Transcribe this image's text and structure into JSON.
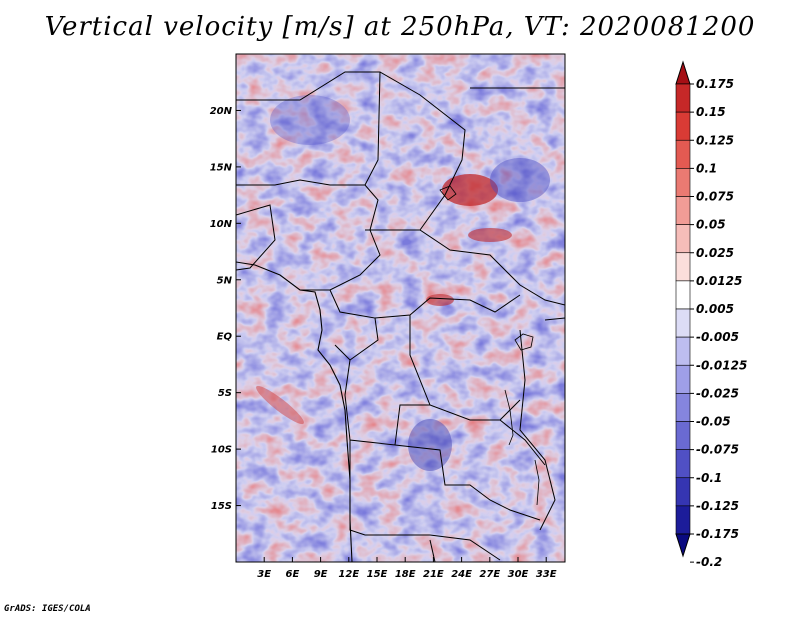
{
  "title": "Vertical velocity [m/s] at 250hPa, VT: 2020081200",
  "footer": "GrADS: IGES/COLA",
  "map": {
    "lat_ticks": [
      "20N",
      "15N",
      "10N",
      "5N",
      "EQ",
      "5S",
      "10S",
      "15S"
    ],
    "lat_values": [
      20,
      15,
      10,
      5,
      0,
      -5,
      -10,
      -15
    ],
    "lon_ticks": [
      "3E",
      "6E",
      "9E",
      "12E",
      "15E",
      "18E",
      "21E",
      "24E",
      "27E",
      "30E",
      "33E"
    ],
    "lon_values": [
      3,
      6,
      9,
      12,
      15,
      18,
      21,
      24,
      27,
      30,
      33
    ],
    "lon_range": [
      0,
      35
    ],
    "lat_range": [
      -20,
      25
    ]
  },
  "colorbar": {
    "labels": [
      "0.175",
      "0.15",
      "0.125",
      "0.1",
      "0.075",
      "0.05",
      "0.025",
      "0.0125",
      "0.005",
      "-0.005",
      "-0.0125",
      "-0.025",
      "-0.05",
      "-0.075",
      "-0.1",
      "-0.125",
      "-0.175",
      "-0.2"
    ],
    "colors": [
      "#a50f15",
      "#c62828",
      "#d93b35",
      "#e35a52",
      "#ea7a72",
      "#f19c96",
      "#f6bdb9",
      "#fbdedb",
      "#ffffff",
      "#dcdcf6",
      "#bdbdf0",
      "#9f9fe8",
      "#8585de",
      "#6a6ad2",
      "#5050c4",
      "#3535b2",
      "#1c1c9a",
      "#0a0a80"
    ]
  }
}
